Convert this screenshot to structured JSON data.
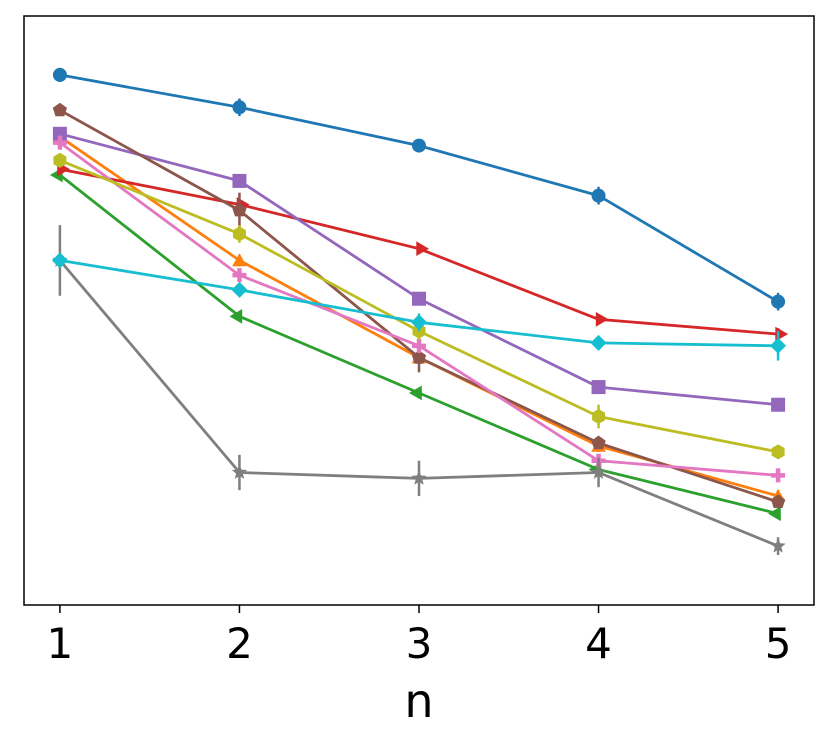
{
  "chart_data": {
    "type": "line",
    "title": "",
    "xlabel": "n",
    "ylabel": "",
    "x": [
      1,
      2,
      3,
      4,
      5
    ],
    "xlim": [
      0.8,
      5.2
    ],
    "ylim": [
      0,
      10
    ],
    "xticks": [
      "1",
      "2",
      "3",
      "4",
      "5"
    ],
    "grid": false,
    "legend": "none",
    "series": [
      {
        "color": "#1f77b4",
        "marker": "circle",
        "values": [
          9.0,
          8.45,
          7.8,
          6.95,
          5.15
        ],
        "err": [
          0.12,
          0.15,
          0.1,
          0.15,
          0.15
        ]
      },
      {
        "color": "#ff7f0e",
        "marker": "triangle-up",
        "values": [
          7.95,
          5.85,
          4.2,
          2.7,
          1.85
        ],
        "err": [
          0.1,
          0.1,
          0.1,
          0.1,
          0.1
        ]
      },
      {
        "color": "#2ca02c",
        "marker": "triangle-left",
        "values": [
          7.3,
          4.9,
          3.6,
          2.3,
          1.55
        ],
        "err": [
          0.08,
          0.08,
          0.08,
          0.08,
          0.08
        ]
      },
      {
        "color": "#d62728",
        "marker": "triangle-right",
        "values": [
          7.4,
          6.8,
          6.05,
          4.85,
          4.6
        ],
        "err": [
          0.08,
          0.08,
          0.08,
          0.08,
          0.1
        ]
      },
      {
        "color": "#9467bd",
        "marker": "square",
        "values": [
          8.0,
          7.2,
          5.2,
          3.7,
          3.4
        ],
        "err": [
          0.08,
          0.1,
          0.1,
          0.1,
          0.1
        ]
      },
      {
        "color": "#8c564b",
        "marker": "pentagon",
        "values": [
          8.4,
          6.7,
          4.2,
          2.75,
          1.75
        ],
        "err": [
          0.1,
          0.3,
          0.25,
          0.1,
          0.1
        ]
      },
      {
        "color": "#e377c2",
        "marker": "plus",
        "values": [
          7.85,
          5.6,
          4.4,
          2.45,
          2.2
        ],
        "err": [
          0.1,
          0.1,
          0.1,
          0.1,
          0.1
        ]
      },
      {
        "color": "#7f7f7f",
        "marker": "star",
        "values": [
          5.85,
          2.25,
          2.15,
          2.25,
          1.0
        ],
        "err": [
          0.6,
          0.3,
          0.3,
          0.25,
          0.15
        ]
      },
      {
        "color": "#bcbd22",
        "marker": "hexagon",
        "values": [
          7.55,
          6.3,
          4.65,
          3.2,
          2.6
        ],
        "err": [
          0.12,
          0.15,
          0.15,
          0.2,
          0.1
        ]
      },
      {
        "color": "#17becf",
        "marker": "diamond",
        "values": [
          5.85,
          5.35,
          4.8,
          4.45,
          4.4
        ],
        "err": [
          0.1,
          0.1,
          0.15,
          0.1,
          0.25
        ]
      }
    ]
  }
}
